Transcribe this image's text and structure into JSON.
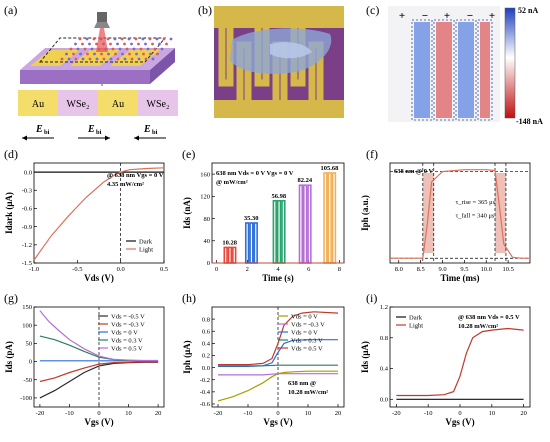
{
  "panel_labels": [
    "(a)",
    "(b)",
    "(c)",
    "(d)",
    "(e)",
    "(f)",
    "(g)",
    "(h)",
    "(i)"
  ],
  "panel_a": {
    "blocks": [
      "Au",
      "WSe₂",
      "Au",
      "WSe₂"
    ],
    "fields": [
      "E",
      "E",
      "E"
    ],
    "field_sub": "bi"
  },
  "panel_c": {
    "colorbar_max": "52 nA",
    "colorbar_min": "-148 nA",
    "signs": [
      "+",
      "−",
      "+",
      "−",
      "+"
    ],
    "colors": {
      "pos": "#d62a2a",
      "neg": "#2b5fd9"
    }
  },
  "chart_data": [
    {
      "panel": "d",
      "type": "line",
      "xlabel": "V_ds (V)",
      "ylabel": "I_dark (μA)",
      "xlim": [
        -1.0,
        0.5
      ],
      "ylim": [
        -1.5,
        0.15
      ],
      "xticks": [
        "-1.0",
        "-0.5",
        "0.0",
        "0.5"
      ],
      "yticks": [
        "0.0",
        "-0.3",
        "-0.6",
        "-0.9",
        "-1.2",
        "-1.5"
      ],
      "annotation": "@ 638 nm  V_gs = 0 V",
      "annotation2": "4.35 mW/cm²",
      "series": [
        {
          "name": "Dark",
          "color": "#111111",
          "x": [
            -1.0,
            0.5
          ],
          "y": [
            0.0,
            0.0
          ]
        },
        {
          "name": "Light",
          "color": "#e0705a",
          "x": [
            -1.0,
            -0.8,
            -0.6,
            -0.4,
            -0.2,
            -0.05,
            0.0,
            0.1,
            0.3,
            0.5
          ],
          "y": [
            -1.45,
            -1.05,
            -0.72,
            -0.42,
            -0.17,
            -0.03,
            0.0,
            0.04,
            0.06,
            0.07
          ]
        }
      ]
    },
    {
      "panel": "e",
      "type": "bar",
      "xlabel": "Time (s)",
      "ylabel": "I_ds (nA)",
      "xlim": [
        -0.3,
        8.3
      ],
      "ylim": [
        0,
        180
      ],
      "xticks": [
        "0",
        "2",
        "4",
        "6",
        "8"
      ],
      "yticks": [
        "0",
        "40",
        "80",
        "120",
        "160"
      ],
      "annotation": "638 nm  V_ds = 0 V  V_gs = 0 V",
      "annotation2": "@ mW/cm²",
      "groups": [
        {
          "start": 0.5,
          "value": 28,
          "label": "10.28",
          "color": "#e7483a"
        },
        {
          "start": 1.9,
          "value": 72,
          "label": "35.30",
          "color": "#2e6fd8"
        },
        {
          "start": 3.7,
          "value": 112,
          "label": "56.98",
          "color": "#27a36b"
        },
        {
          "start": 5.4,
          "value": 140,
          "label": "82.24",
          "color": "#b46fd6"
        },
        {
          "start": 7.0,
          "value": 162,
          "label": "105.68",
          "color": "#f0b15a"
        }
      ]
    },
    {
      "panel": "f",
      "type": "line",
      "xlabel": "Time (ms)",
      "ylabel": "I_ph (a.u.)",
      "xlim": [
        7.8,
        11.0
      ],
      "xticks": [
        "8.0",
        "8.5",
        "9.0",
        "9.5",
        "10.0",
        "10.5"
      ],
      "annotation": "638 nm @ 0 V",
      "rise": "τ_rise = 365 μs",
      "fall": "τ_fall = 340 μs",
      "series": [
        {
          "name": "response",
          "color": "#e0705a",
          "x": [
            7.8,
            8.3,
            8.55,
            8.65,
            8.75,
            9.0,
            9.5,
            10.0,
            10.2,
            10.3,
            10.4,
            10.6,
            10.8,
            11.0
          ],
          "y": [
            0.05,
            0.05,
            0.05,
            0.4,
            0.85,
            0.96,
            0.98,
            0.98,
            0.97,
            0.6,
            0.2,
            0.06,
            0.05,
            0.05
          ]
        }
      ]
    },
    {
      "panel": "g",
      "type": "line",
      "xlabel": "V_gs (V)",
      "ylabel": "I_ds (pA)",
      "xlim": [
        -22,
        22
      ],
      "ylim": [
        -125,
        150
      ],
      "xticks": [
        "-20",
        "-10",
        "0",
        "10",
        "20"
      ],
      "yticks": [
        "-100",
        "-50",
        "0",
        "50",
        "100",
        "150"
      ],
      "series": [
        {
          "name": "V_ds = -0.5 V",
          "color": "#2b2b2b",
          "x": [
            -20,
            -15,
            -10,
            -5,
            0,
            5,
            10,
            15,
            20
          ],
          "y": [
            -100,
            -80,
            -55,
            -30,
            -12,
            -5,
            -3,
            -2,
            -2
          ]
        },
        {
          "name": "V_ds = -0.3 V",
          "color": "#c0392b",
          "x": [
            -20,
            -15,
            -10,
            -5,
            0,
            5,
            10,
            15,
            20
          ],
          "y": [
            -55,
            -45,
            -30,
            -18,
            -7,
            -3,
            -2,
            -1,
            -1
          ]
        },
        {
          "name": "V_ds = 0 V",
          "color": "#2e6fd8",
          "x": [
            -20,
            20
          ],
          "y": [
            2,
            2
          ]
        },
        {
          "name": "V_ds = 0.3 V",
          "color": "#2a7f62",
          "x": [
            -20,
            -15,
            -10,
            -5,
            0,
            5,
            10,
            15,
            20
          ],
          "y": [
            70,
            60,
            45,
            28,
            12,
            5,
            3,
            2,
            2
          ]
        },
        {
          "name": "V_ds = 0.5 V",
          "color": "#b46fd6",
          "x": [
            -20,
            -17,
            -14,
            -10,
            -5,
            0,
            5,
            10,
            15,
            20
          ],
          "y": [
            140,
            110,
            88,
            60,
            35,
            15,
            6,
            4,
            3,
            3
          ]
        }
      ]
    },
    {
      "panel": "h",
      "type": "line",
      "xlabel": "V_gs (V)",
      "ylabel": "I_ph (μA)",
      "xlim": [
        -22,
        22
      ],
      "ylim": [
        -0.65,
        1.0
      ],
      "xticks": [
        "-20",
        "-10",
        "0",
        "10",
        "20"
      ],
      "yticks": [
        "-0.6",
        "-0.4",
        "-0.2",
        "0.0",
        "0.2",
        "0.4",
        "0.6",
        "0.8"
      ],
      "annotation": "638 nm @",
      "annotation2": "10.28 mW/cm²",
      "series": [
        {
          "name": "V_ds = 0 V",
          "color": "#a6a000",
          "x": [
            -20,
            -15,
            -10,
            -5,
            -2,
            0,
            2,
            5,
            10,
            20
          ],
          "y": [
            -0.55,
            -0.48,
            -0.38,
            -0.25,
            -0.15,
            -0.1,
            -0.08,
            -0.07,
            -0.06,
            -0.06
          ]
        },
        {
          "name": "V_ds = -0.3 V",
          "color": "#b46fd6",
          "x": [
            -20,
            -10,
            -5,
            0,
            5,
            10,
            20
          ],
          "y": [
            -0.12,
            -0.12,
            -0.12,
            -0.1,
            -0.1,
            -0.1,
            -0.1
          ]
        },
        {
          "name": "V_ds = 0 V",
          "color": "#2e6fd8",
          "x": [
            -20,
            -10,
            -5,
            -2,
            0,
            2,
            5,
            10,
            20
          ],
          "y": [
            0.02,
            0.02,
            0.03,
            0.08,
            0.25,
            0.4,
            0.45,
            0.46,
            0.46
          ]
        },
        {
          "name": "V_ds = 0.3 V",
          "color": "#2a7f62",
          "x": [
            -20,
            -10,
            -5,
            0,
            5,
            10,
            20
          ],
          "y": [
            0.03,
            0.03,
            0.03,
            0.04,
            0.04,
            0.04,
            0.04
          ]
        },
        {
          "name": "V_ds = 0.5 V",
          "color": "#c0392b",
          "x": [
            -20,
            -10,
            -5,
            -2,
            0,
            2,
            5,
            8,
            12,
            20
          ],
          "y": [
            0.05,
            0.05,
            0.07,
            0.15,
            0.4,
            0.7,
            0.85,
            0.9,
            0.92,
            0.9
          ]
        }
      ]
    },
    {
      "panel": "i",
      "type": "line",
      "xlabel": "V_gs (V)",
      "ylabel": "I_ds (μA)",
      "xlim": [
        -22,
        22
      ],
      "ylim": [
        -0.1,
        1.2
      ],
      "xticks": [
        "-20",
        "-10",
        "0",
        "10",
        "20"
      ],
      "yticks": [
        "0.0",
        "0.4",
        "0.8",
        "1.2"
      ],
      "annotation": "@ 638 nm  V_ds = 0.5 V",
      "annotation2": "10.28 mW/cm²",
      "series": [
        {
          "name": "Dark",
          "color": "#111111",
          "x": [
            -20,
            20
          ],
          "y": [
            0.0,
            0.0
          ]
        },
        {
          "name": "Light",
          "color": "#c0392b",
          "x": [
            -20,
            -10,
            -5,
            -2,
            0,
            2,
            4,
            7,
            10,
            15,
            20
          ],
          "y": [
            0.05,
            0.05,
            0.06,
            0.1,
            0.3,
            0.6,
            0.8,
            0.88,
            0.9,
            0.92,
            0.9
          ]
        }
      ]
    }
  ]
}
